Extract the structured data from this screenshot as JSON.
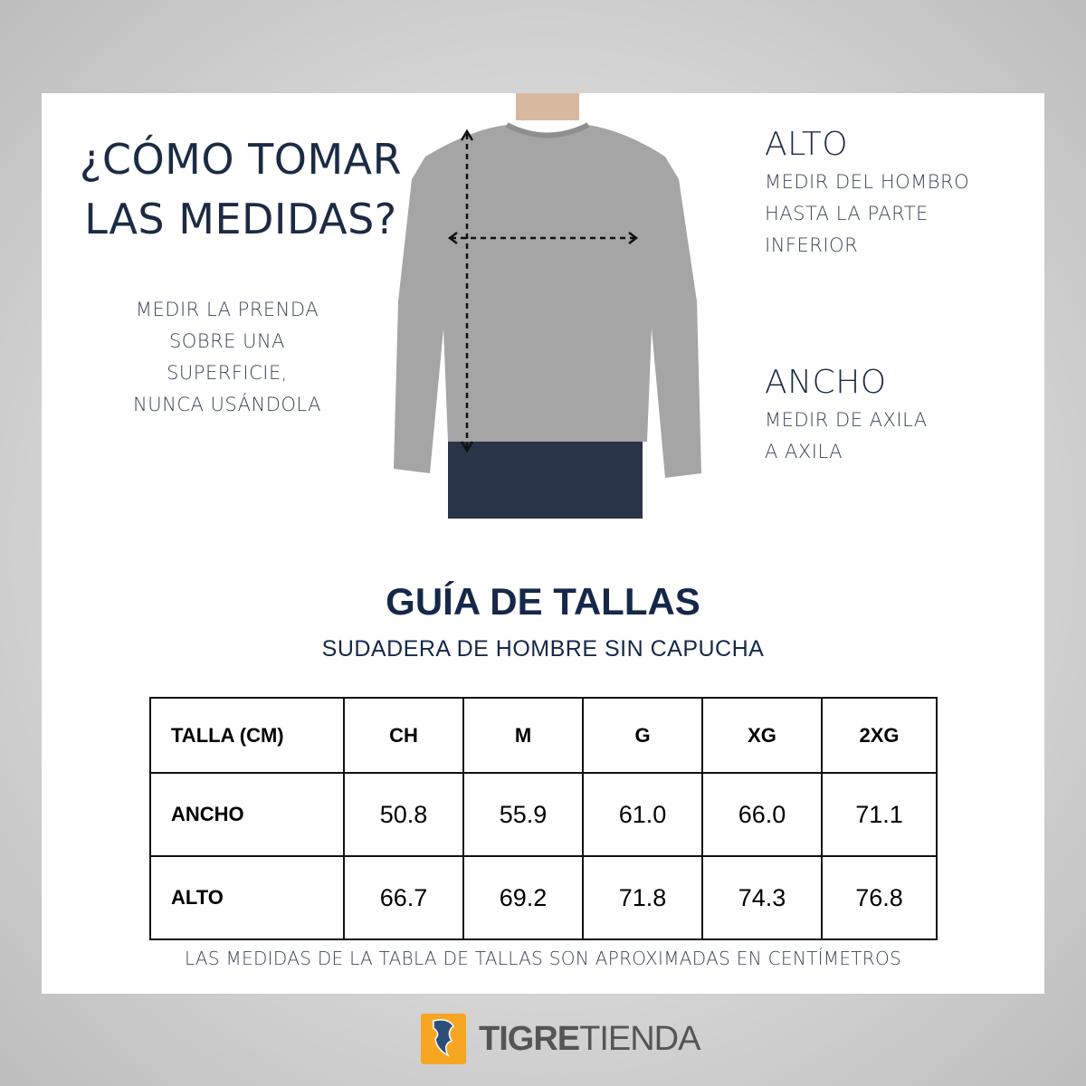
{
  "how_to": {
    "title_line1": "¿CÓMO TOMAR",
    "title_line2": "LAS MEDIDAS?",
    "instructions": [
      "MEDIR LA PRENDA",
      "SOBRE UNA",
      "SUPERFICIE,",
      "NUNCA USÁNDOLA"
    ]
  },
  "alto": {
    "heading": "ALTO",
    "lines": [
      "MEDIR DEL HOMBRO",
      "HASTA LA PARTE",
      "INFERIOR"
    ]
  },
  "ancho": {
    "heading": "ANCHO",
    "lines": [
      "MEDIR DE AXILA",
      "A AXILA"
    ]
  },
  "guide": {
    "title": "GUÍA DE TALLAS",
    "subtitle": "SUDADERA DE HOMBRE SIN CAPUCHA",
    "header": [
      "TALLA (CM)",
      "CH",
      "M",
      "G",
      "XG",
      "2XG"
    ],
    "rows": [
      [
        "ANCHO",
        "50.8",
        "55.9",
        "61.0",
        "66.0",
        "71.1"
      ],
      [
        "ALTO",
        "66.7",
        "69.2",
        "71.8",
        "74.3",
        "76.8"
      ]
    ],
    "note": "LAS MEDIDAS DE LA TABLA DE TALLAS SON APROXIMADAS EN CENTÍMETROS"
  },
  "brand": {
    "bold": "TIGRE",
    "light": "TIENDA",
    "color": "#f6a623"
  }
}
